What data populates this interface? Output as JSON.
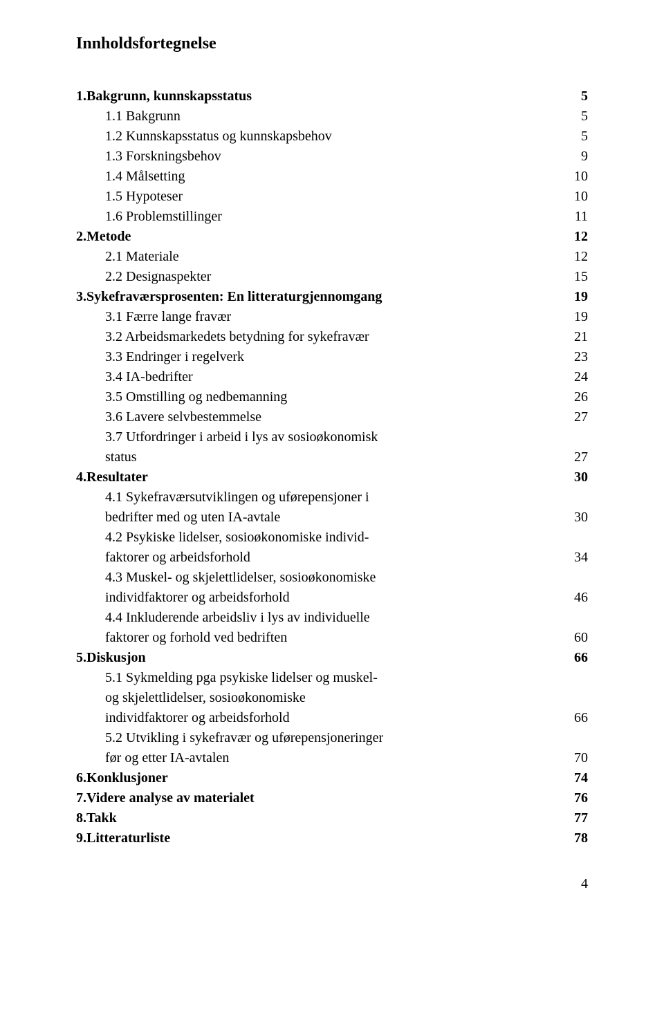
{
  "title": "Innholdsfortegnelse",
  "page_number": "4",
  "font_family": "Times New Roman",
  "text_color": "#000000",
  "background_color": "#ffffff",
  "title_fontsize": 24,
  "body_fontsize": 20,
  "entries": [
    {
      "label": "1.Bakgrunn, kunnskapsstatus",
      "page": "5",
      "bold": true,
      "indent": false
    },
    {
      "label": "1.1 Bakgrunn",
      "page": "5",
      "bold": false,
      "indent": true
    },
    {
      "label": "1.2 Kunnskapsstatus og kunnskapsbehov",
      "page": "5",
      "bold": false,
      "indent": true
    },
    {
      "label": "1.3 Forskningsbehov",
      "page": "9",
      "bold": false,
      "indent": true
    },
    {
      "label": "1.4 Målsetting",
      "page": "10",
      "bold": false,
      "indent": true
    },
    {
      "label": "1.5 Hypoteser",
      "page": "10",
      "bold": false,
      "indent": true
    },
    {
      "label": "1.6 Problemstillinger",
      "page": "11",
      "bold": false,
      "indent": true
    },
    {
      "label": "2.Metode",
      "page": "12",
      "bold": true,
      "indent": false
    },
    {
      "label": "2.1 Materiale",
      "page": "12",
      "bold": false,
      "indent": true
    },
    {
      "label": "2.2 Designaspekter",
      "page": "15",
      "bold": false,
      "indent": true
    },
    {
      "label": "3.Sykefraværsprosenten: En litteraturgjennomgang",
      "page": "19",
      "bold": true,
      "indent": false
    },
    {
      "label": "3.1 Færre lange fravær",
      "page": "19",
      "bold": false,
      "indent": true
    },
    {
      "label": "3.2 Arbeidsmarkedets betydning for sykefravær",
      "page": "21",
      "bold": false,
      "indent": true
    },
    {
      "label": "3.3 Endringer i regelverk",
      "page": "23",
      "bold": false,
      "indent": true
    },
    {
      "label": "3.4 IA-bedrifter",
      "page": "24",
      "bold": false,
      "indent": true
    },
    {
      "label": "3.5 Omstilling og nedbemanning",
      "page": "26",
      "bold": false,
      "indent": true
    },
    {
      "label": "3.6 Lavere selvbestemmelse",
      "page": "27",
      "bold": false,
      "indent": true
    },
    {
      "label": "3.7 Utfordringer i arbeid i lys av sosioøkonomisk",
      "page": "",
      "bold": false,
      "indent": true
    },
    {
      "label": "status",
      "page": "27",
      "bold": false,
      "indent": true
    },
    {
      "label": "4.Resultater",
      "page": "30",
      "bold": true,
      "indent": false
    },
    {
      "label": "4.1 Sykefraværsutviklingen og uførepensjoner i",
      "page": "",
      "bold": false,
      "indent": true
    },
    {
      "label": "bedrifter med og uten IA-avtale",
      "page": "30",
      "bold": false,
      "indent": true
    },
    {
      "label": "4.2 Psykiske lidelser, sosioøkonomiske individ-",
      "page": "",
      "bold": false,
      "indent": true
    },
    {
      "label": "faktorer og arbeidsforhold",
      "page": "34",
      "bold": false,
      "indent": true
    },
    {
      "label": "4.3 Muskel- og skjelettlidelser, sosioøkonomiske",
      "page": "",
      "bold": false,
      "indent": true
    },
    {
      "label": "individfaktorer og arbeidsforhold",
      "page": "46",
      "bold": false,
      "indent": true
    },
    {
      "label": "4.4 Inkluderende arbeidsliv i lys av individuelle",
      "page": "",
      "bold": false,
      "indent": true
    },
    {
      "label": "faktorer og forhold ved bedriften",
      "page": "60",
      "bold": false,
      "indent": true
    },
    {
      "label": "5.Diskusjon",
      "page": "66",
      "bold": true,
      "indent": false
    },
    {
      "label": "5.1 Sykmelding pga psykiske lidelser og muskel-",
      "page": "",
      "bold": false,
      "indent": true
    },
    {
      "label": "og skjelettlidelser, sosioøkonomiske",
      "page": "",
      "bold": false,
      "indent": true
    },
    {
      "label": "individfaktorer og arbeidsforhold",
      "page": "66",
      "bold": false,
      "indent": true
    },
    {
      "label": "5.2 Utvikling i sykefravær og uførepensjoneringer",
      "page": "",
      "bold": false,
      "indent": true
    },
    {
      "label": "før og etter IA-avtalen",
      "page": "70",
      "bold": false,
      "indent": true
    },
    {
      "label": "6.Konklusjoner",
      "page": "74",
      "bold": true,
      "indent": false
    },
    {
      "label": "7.Videre analyse av materialet",
      "page": "76",
      "bold": true,
      "indent": false
    },
    {
      "label": "8.Takk",
      "page": "77",
      "bold": true,
      "indent": false
    },
    {
      "label": "9.Litteraturliste",
      "page": "78",
      "bold": true,
      "indent": false
    }
  ]
}
